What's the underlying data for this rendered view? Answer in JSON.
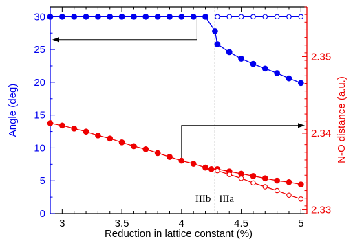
{
  "chart_data": {
    "type": "line",
    "xlabel": "Reduction in lattice constant (%)",
    "ylabel_left": "Angle (deg)",
    "ylabel_right": "N-O distance (a.u.)",
    "xlim": [
      2.9,
      5.05
    ],
    "ylim_left": [
      0,
      31.5
    ],
    "ylim_right": [
      2.3295,
      2.3565
    ],
    "x_ticks": [
      3,
      3.5,
      4,
      4.5,
      5
    ],
    "x_tick_labels": [
      "3",
      "3.5",
      "4",
      "4.5",
      "5"
    ],
    "y_left_ticks": [
      0,
      5,
      10,
      15,
      20,
      25,
      30
    ],
    "y_left_tick_labels": [
      "0",
      "5",
      "10",
      "15",
      "20",
      "25",
      "30"
    ],
    "y_right_ticks": [
      2.33,
      2.34,
      2.35
    ],
    "y_right_tick_labels": [
      "2.33",
      "2.34",
      "2.35"
    ],
    "grid": false,
    "colors": {
      "angle": "#0000ee",
      "distance": "#ee0000",
      "annotation": "#000000"
    },
    "series": [
      {
        "axis": "left",
        "marker": "filled",
        "color": "#0000ee",
        "x": [
          2.9,
          3.0,
          3.1,
          3.2,
          3.3,
          3.4,
          3.5,
          3.6,
          3.7,
          3.8,
          3.9,
          4.0,
          4.1,
          4.2,
          4.28,
          4.3,
          4.4,
          4.5,
          4.6,
          4.7,
          4.8,
          4.9,
          5.0
        ],
        "y": [
          30,
          30,
          30,
          30,
          30,
          30,
          30,
          30,
          30,
          30,
          30,
          30,
          30,
          30,
          27.8,
          25.8,
          24.6,
          23.6,
          22.8,
          22.1,
          21.4,
          20.6,
          19.9
        ]
      },
      {
        "axis": "left",
        "marker": "open",
        "color": "#0000ee",
        "x": [
          4.3,
          4.4,
          4.5,
          4.6,
          4.7,
          4.8,
          4.9,
          5.0
        ],
        "y": [
          30,
          30,
          30,
          30,
          30,
          30,
          30,
          30
        ]
      },
      {
        "axis": "right",
        "marker": "filled",
        "color": "#ee0000",
        "x": [
          2.9,
          3.0,
          3.1,
          3.2,
          3.3,
          3.4,
          3.5,
          3.6,
          3.7,
          3.8,
          3.9,
          4.0,
          4.1,
          4.2,
          4.25,
          4.3,
          4.4,
          4.5,
          4.6,
          4.7,
          4.8,
          4.9,
          5.0
        ],
        "y": [
          2.3413,
          2.341,
          2.3406,
          2.3402,
          2.3397,
          2.3393,
          2.3388,
          2.3383,
          2.3379,
          2.3374,
          2.3369,
          2.3364,
          2.336,
          2.3355,
          2.3353,
          2.3353,
          2.335,
          2.3347,
          2.3344,
          2.3341,
          2.3338,
          2.3336,
          2.3333
        ]
      },
      {
        "axis": "right",
        "marker": "open",
        "color": "#ee0000",
        "x": [
          4.3,
          4.4,
          4.5,
          4.6,
          4.7,
          4.8,
          4.9,
          5.0
        ],
        "y": [
          2.3351,
          2.3346,
          2.3341,
          2.3335,
          2.333,
          2.3325,
          2.3319,
          2.3314
        ]
      }
    ],
    "annotations": {
      "divider_x": 4.28,
      "region_left": "IIIb",
      "region_right": "IIIa",
      "arrow_to_left_axis": {
        "from_x": 4.13,
        "axis": "left",
        "y": 30,
        "to_y": 26.5
      },
      "arrow_to_right_axis": {
        "from_x": 4.0,
        "axis": "right",
        "y": 2.3364,
        "to_y": 2.341
      }
    }
  }
}
